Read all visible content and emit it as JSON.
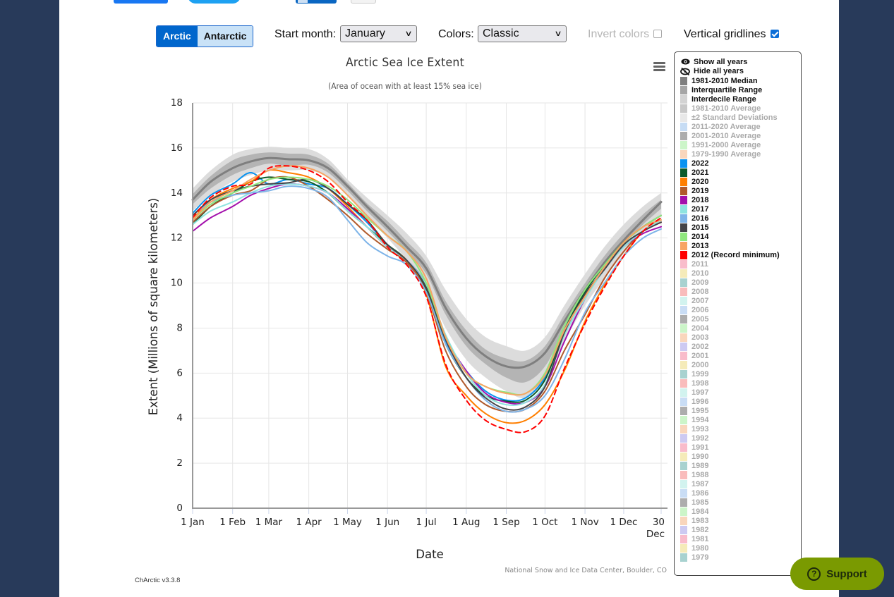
{
  "controls": {
    "hemisphere_buttons": [
      {
        "label": "Arctic",
        "active": true
      },
      {
        "label": "Antarctic",
        "active": false
      }
    ],
    "start_month_label": "Start month:",
    "start_month_value": "January",
    "colors_label": "Colors:",
    "colors_value": "Classic",
    "invert_colors_label": "Invert colors",
    "invert_colors_checked": false,
    "vertical_gridlines_label": "Vertical gridlines",
    "vertical_gridlines_checked": true
  },
  "legend": {
    "show_all": "Show all years",
    "hide_all": "Hide all years",
    "items": [
      {
        "label": "1981-2010 Median",
        "color": "#7f7f7f",
        "on": true
      },
      {
        "label": "Interquartile Range",
        "color": "#a6a6a6",
        "on": true
      },
      {
        "label": "Interdecile Range",
        "color": "#d3d3d3",
        "on": true
      },
      {
        "label": "1981-2010 Average",
        "color": "#c8c8c8",
        "on": false
      },
      {
        "label": "±2 Standard Deviations",
        "color": "#e8e8e8",
        "on": false
      },
      {
        "label": "2011-2020 Average",
        "color": "#c6dcf4",
        "on": false
      },
      {
        "label": "2001-2010 Average",
        "color": "#adadad",
        "on": false
      },
      {
        "label": "1991-2000 Average",
        "color": "#ccf5c9",
        "on": false
      },
      {
        "label": "1979-1990 Average",
        "color": "#f9d6bc",
        "on": false
      },
      {
        "label": "2022",
        "color": "#0a93f0",
        "on": true
      },
      {
        "label": "2021",
        "color": "#0b5a2a",
        "on": true
      },
      {
        "label": "2020",
        "color": "#ff7f00",
        "on": true
      },
      {
        "label": "2019",
        "color": "#b05a2c",
        "on": true
      },
      {
        "label": "2018",
        "color": "#a310ac",
        "on": true
      },
      {
        "label": "2017",
        "color": "#8ee4e0",
        "on": true
      },
      {
        "label": "2016",
        "color": "#7eb4e8",
        "on": true
      },
      {
        "label": "2015",
        "color": "#444448",
        "on": true
      },
      {
        "label": "2014",
        "color": "#90e77e",
        "on": true
      },
      {
        "label": "2013",
        "color": "#f7a463",
        "on": true
      },
      {
        "label": "2012 (Record minimum)",
        "color": "#ff0000",
        "on": true
      },
      {
        "label": "2011",
        "color": "#f9bccb",
        "on": false
      },
      {
        "label": "2010",
        "color": "#f5ebb9",
        "on": false
      },
      {
        "label": "2009",
        "color": "#a8d2d0",
        "on": false
      },
      {
        "label": "2008",
        "color": "#f9bcbc",
        "on": false
      },
      {
        "label": "2007",
        "color": "#d2f3ef",
        "on": false
      },
      {
        "label": "2006",
        "color": "#c9ddf5",
        "on": false
      },
      {
        "label": "2005",
        "color": "#adadad",
        "on": false
      },
      {
        "label": "2004",
        "color": "#ccf5c9",
        "on": false
      },
      {
        "label": "2003",
        "color": "#f9d6bc",
        "on": false
      },
      {
        "label": "2002",
        "color": "#cdcaf2",
        "on": false
      },
      {
        "label": "2001",
        "color": "#f9bccb",
        "on": false
      },
      {
        "label": "2000",
        "color": "#f5ebb9",
        "on": false
      },
      {
        "label": "1999",
        "color": "#a8d2d0",
        "on": false
      },
      {
        "label": "1998",
        "color": "#f9bcbc",
        "on": false
      },
      {
        "label": "1997",
        "color": "#d2f3ef",
        "on": false
      },
      {
        "label": "1996",
        "color": "#c9ddf5",
        "on": false
      },
      {
        "label": "1995",
        "color": "#adadad",
        "on": false
      },
      {
        "label": "1994",
        "color": "#ccf5c9",
        "on": false
      },
      {
        "label": "1993",
        "color": "#f9d6bc",
        "on": false
      },
      {
        "label": "1992",
        "color": "#cdcaf2",
        "on": false
      },
      {
        "label": "1991",
        "color": "#f9bccb",
        "on": false
      },
      {
        "label": "1990",
        "color": "#f5ebb9",
        "on": false
      },
      {
        "label": "1989",
        "color": "#a8d2d0",
        "on": false
      },
      {
        "label": "1988",
        "color": "#f9bcbc",
        "on": false
      },
      {
        "label": "1987",
        "color": "#d2f3ef",
        "on": false
      },
      {
        "label": "1986",
        "color": "#c9ddf5",
        "on": false
      },
      {
        "label": "1985",
        "color": "#adadad",
        "on": false
      },
      {
        "label": "1984",
        "color": "#ccf5c9",
        "on": false
      },
      {
        "label": "1983",
        "color": "#f9d6bc",
        "on": false
      },
      {
        "label": "1982",
        "color": "#cdcaf2",
        "on": false
      },
      {
        "label": "1981",
        "color": "#f9bccb",
        "on": false
      },
      {
        "label": "1980",
        "color": "#f5ebb9",
        "on": false
      },
      {
        "label": "1979",
        "color": "#a8d2d0",
        "on": false
      }
    ]
  },
  "footer": {
    "version": "ChArctic v3.3.8",
    "support_label": "Support"
  },
  "chart_data": {
    "type": "line",
    "title": "Arctic Sea Ice Extent",
    "subtitle": "(Area of ocean with at least 15% sea ice)",
    "xlabel": "Date",
    "ylabel": "Extent (Millions of square kilometers)",
    "credit": "National Snow and Ice Data Center, Boulder, CO",
    "ylim": [
      0,
      18
    ],
    "yticks": [
      0,
      2,
      4,
      6,
      8,
      10,
      12,
      14,
      16,
      18
    ],
    "xlim_day": [
      1,
      364
    ],
    "xticks": [
      {
        "day": 1,
        "label": "1 Jan"
      },
      {
        "day": 32,
        "label": "1 Feb"
      },
      {
        "day": 60,
        "label": "1 Mar"
      },
      {
        "day": 91,
        "label": "1 Apr"
      },
      {
        "day": 121,
        "label": "1 May"
      },
      {
        "day": 152,
        "label": "1 Jun"
      },
      {
        "day": 182,
        "label": "1 Jul"
      },
      {
        "day": 213,
        "label": "1 Aug"
      },
      {
        "day": 244,
        "label": "1 Sep"
      },
      {
        "day": 274,
        "label": "1 Oct"
      },
      {
        "day": 305,
        "label": "1 Nov"
      },
      {
        "day": 335,
        "label": "1 Dec"
      },
      {
        "day": 364,
        "label": "30 Dec"
      }
    ],
    "grid": {
      "horizontal": true,
      "vertical": true
    },
    "legend_position": "right",
    "x_days": [
      1,
      15,
      32,
      46,
      60,
      75,
      91,
      106,
      121,
      136,
      152,
      167,
      182,
      197,
      213,
      228,
      244,
      259,
      274,
      289,
      305,
      320,
      335,
      350,
      364
    ],
    "bands": [
      {
        "name": "Interdecile Range",
        "color": "#dcdcdc",
        "low": [
          13.2,
          13.9,
          14.5,
          14.8,
          15.0,
          15.0,
          15.0,
          14.7,
          13.9,
          12.9,
          12.0,
          11.0,
          9.8,
          8.0,
          6.6,
          5.8,
          5.2,
          4.9,
          5.7,
          7.4,
          9.0,
          10.2,
          11.3,
          12.3,
          13.0
        ],
        "high": [
          14.2,
          15.0,
          15.7,
          15.95,
          16.05,
          16.0,
          15.95,
          15.5,
          14.6,
          13.8,
          13.0,
          12.2,
          11.2,
          9.7,
          8.4,
          7.6,
          7.2,
          7.0,
          7.6,
          9.0,
          10.4,
          11.6,
          12.6,
          13.4,
          14.0
        ]
      },
      {
        "name": "Interquartile Range",
        "color": "#b4b4b4",
        "low": [
          13.5,
          14.2,
          14.8,
          15.1,
          15.3,
          15.2,
          15.25,
          14.9,
          14.1,
          13.2,
          12.3,
          11.4,
          10.4,
          8.6,
          7.2,
          6.4,
          5.8,
          5.6,
          6.3,
          7.9,
          9.4,
          10.6,
          11.7,
          12.6,
          13.3
        ],
        "high": [
          13.95,
          14.75,
          15.45,
          15.7,
          15.8,
          15.75,
          15.7,
          15.3,
          14.45,
          13.55,
          12.75,
          11.85,
          10.9,
          9.2,
          7.9,
          7.05,
          6.65,
          6.55,
          7.2,
          8.6,
          10.0,
          11.2,
          12.2,
          13.05,
          13.7
        ]
      }
    ],
    "series": [
      {
        "name": "1981-2010 Median",
        "color": "#7f7f7f",
        "width": 3,
        "dash": false,
        "values": [
          13.7,
          14.5,
          15.1,
          15.4,
          15.55,
          15.5,
          15.45,
          15.1,
          14.3,
          13.4,
          12.5,
          11.6,
          10.65,
          8.9,
          7.55,
          6.75,
          6.3,
          6.3,
          6.9,
          8.3,
          9.7,
          10.9,
          11.9,
          12.8,
          13.6
        ]
      },
      {
        "name": "2012 (Record minimum)",
        "color": "#ff0000",
        "width": 2,
        "dash": true,
        "values": [
          12.9,
          13.8,
          14.3,
          14.4,
          15.1,
          15.2,
          15.0,
          14.5,
          13.6,
          12.8,
          11.6,
          10.8,
          9.4,
          6.4,
          4.8,
          3.9,
          3.5,
          3.4,
          4.1,
          6.2,
          8.2,
          9.8,
          11.2,
          12.3,
          12.9
        ]
      },
      {
        "name": "2013",
        "color": "#f7a463",
        "width": 2,
        "dash": false,
        "values": [
          12.8,
          13.6,
          14.1,
          14.6,
          15.0,
          15.2,
          15.1,
          14.7,
          13.9,
          13.0,
          12.1,
          11.4,
          10.2,
          7.6,
          6.0,
          5.4,
          5.1,
          5.1,
          5.9,
          7.9,
          9.4,
          10.7,
          11.8,
          12.5,
          12.8
        ]
      },
      {
        "name": "2014",
        "color": "#90e77e",
        "width": 2,
        "dash": false,
        "values": [
          12.8,
          13.5,
          14.0,
          14.3,
          14.6,
          14.7,
          14.6,
          14.3,
          13.7,
          12.9,
          12.1,
          11.4,
          10.0,
          7.6,
          6.0,
          5.4,
          5.15,
          5.1,
          6.0,
          8.1,
          9.7,
          10.8,
          11.8,
          12.5,
          13.0
        ]
      },
      {
        "name": "2015",
        "color": "#444448",
        "width": 2,
        "dash": false,
        "values": [
          13.0,
          13.7,
          14.1,
          14.3,
          14.4,
          14.45,
          14.6,
          14.2,
          13.5,
          12.8,
          11.7,
          11.0,
          9.8,
          7.5,
          5.8,
          4.9,
          4.4,
          4.5,
          5.4,
          7.8,
          9.5,
          10.6,
          11.7,
          12.3,
          12.7
        ]
      },
      {
        "name": "2016",
        "color": "#7eb4e8",
        "width": 2,
        "dash": false,
        "values": [
          13.0,
          13.6,
          13.9,
          14.0,
          14.1,
          14.3,
          14.2,
          13.8,
          12.8,
          11.8,
          11.2,
          10.8,
          9.6,
          7.3,
          5.8,
          4.8,
          4.3,
          4.4,
          5.0,
          6.6,
          8.7,
          10.0,
          11.2,
          12.0,
          12.4
        ]
      },
      {
        "name": "2017",
        "color": "#8ee4e0",
        "width": 2,
        "dash": false,
        "values": [
          12.6,
          13.2,
          13.6,
          14.0,
          14.3,
          14.4,
          14.3,
          14.0,
          13.2,
          12.5,
          11.6,
          11.0,
          9.9,
          7.7,
          6.0,
          5.0,
          4.6,
          4.7,
          5.5,
          7.7,
          9.3,
          10.6,
          11.6,
          12.3,
          12.8
        ]
      },
      {
        "name": "2018",
        "color": "#a310ac",
        "width": 2,
        "dash": false,
        "values": [
          12.3,
          12.9,
          13.4,
          13.9,
          14.2,
          14.4,
          14.3,
          14.0,
          13.3,
          12.5,
          11.6,
          11.0,
          9.9,
          7.6,
          6.1,
          5.1,
          4.7,
          4.7,
          5.4,
          7.4,
          9.3,
          10.6,
          11.6,
          12.2,
          12.5
        ]
      },
      {
        "name": "2019",
        "color": "#b05a2c",
        "width": 2,
        "dash": false,
        "values": [
          12.7,
          13.4,
          13.9,
          14.1,
          14.6,
          14.7,
          14.3,
          13.7,
          13.0,
          12.2,
          11.5,
          10.9,
          9.6,
          7.0,
          5.4,
          4.6,
          4.3,
          4.4,
          5.2,
          7.0,
          8.6,
          10.2,
          11.4,
          12.3,
          12.7
        ]
      },
      {
        "name": "2020",
        "color": "#ff7f00",
        "width": 2,
        "dash": false,
        "values": [
          12.8,
          13.7,
          14.2,
          14.5,
          15.0,
          14.9,
          14.7,
          14.2,
          13.4,
          12.5,
          11.6,
          11.0,
          9.5,
          6.3,
          5.0,
          4.2,
          3.8,
          3.9,
          4.6,
          6.1,
          8.3,
          9.9,
          11.2,
          12.3,
          12.8
        ]
      },
      {
        "name": "2021",
        "color": "#0b5a2a",
        "width": 2,
        "dash": false,
        "values": [
          12.6,
          13.4,
          14.0,
          14.5,
          14.7,
          14.6,
          14.5,
          14.0,
          13.2,
          12.5,
          11.7,
          11.0,
          9.7,
          7.3,
          5.8,
          5.0,
          4.75,
          4.8,
          5.7,
          7.9,
          9.6,
          10.8,
          11.8,
          12.5,
          13.0
        ]
      },
      {
        "name": "2022",
        "color": "#0a93f0",
        "width": 2,
        "dash": false,
        "values": [
          13.1,
          13.9,
          14.4,
          14.9,
          14.4,
          14.6,
          14.4,
          14.2,
          13.5,
          12.7,
          11.7,
          11.0,
          9.9,
          7.4,
          6.1,
          5.2,
          4.8,
          4.9,
          5.8,
          7.7,
          null,
          null,
          null,
          null,
          null
        ]
      }
    ]
  }
}
